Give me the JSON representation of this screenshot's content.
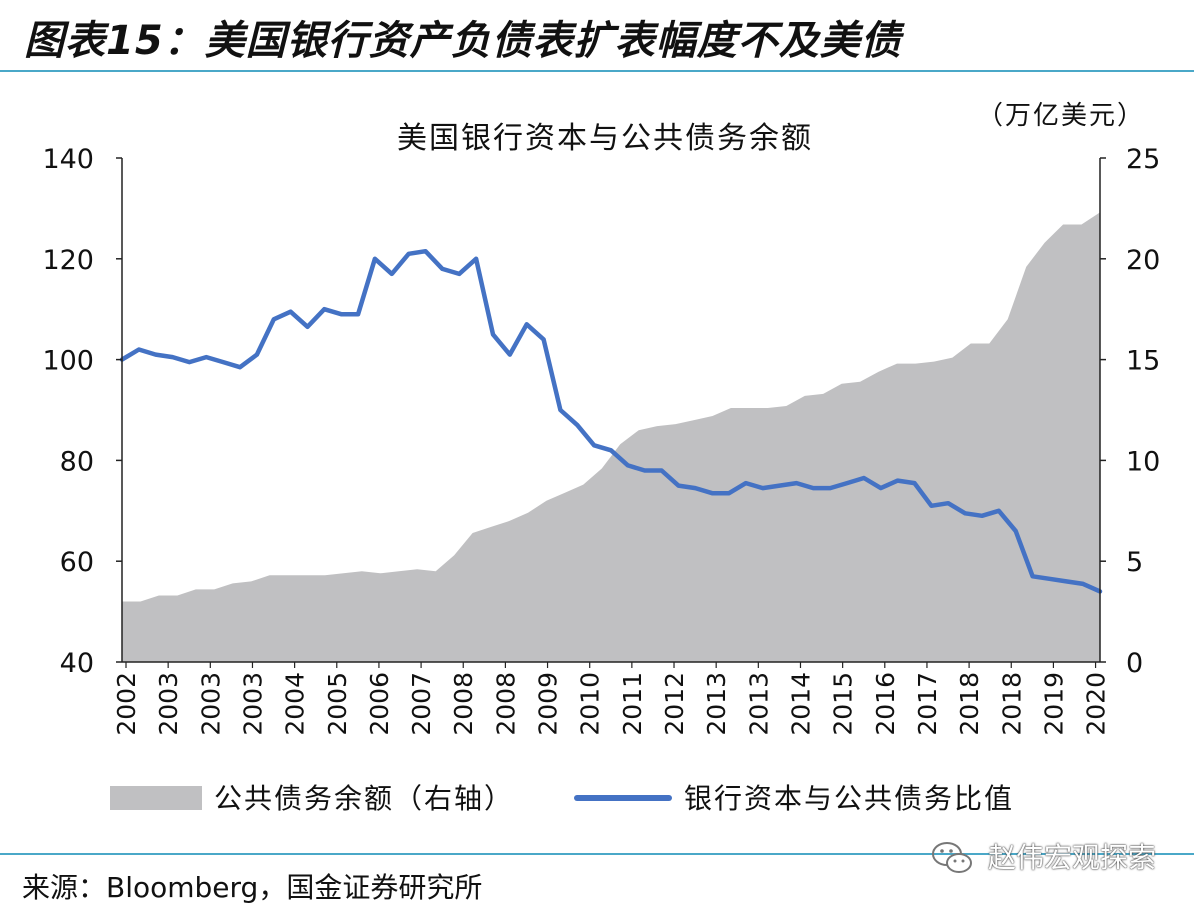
{
  "figure": {
    "title": "图表15：美国银行资产负债表扩表幅度不及美债",
    "source": "来源：Bloomberg，国金证券研究所",
    "watermark": "赵伟宏观探索"
  },
  "colors": {
    "area": "#c0c0c2",
    "line": "#4472c4",
    "rule": "#4aa8c8",
    "axis": "#222222"
  },
  "chart_data": {
    "type": "line",
    "title": "美国银行资本与公共债务余额",
    "unit_label": "（万亿美元）",
    "x_tick_labels": [
      "2002",
      "2003",
      "2003",
      "2003",
      "2004",
      "2005",
      "2006",
      "2007",
      "2008",
      "2008",
      "2009",
      "2010",
      "2011",
      "2012",
      "2013",
      "2013",
      "2014",
      "2015",
      "2016",
      "2017",
      "2018",
      "2018",
      "2019",
      "2020"
    ],
    "left_axis": {
      "ylim": [
        40,
        140
      ],
      "ticks": [
        40,
        60,
        80,
        100,
        120,
        140
      ]
    },
    "right_axis": {
      "ylim": [
        0,
        25
      ],
      "ticks": [
        0,
        5,
        10,
        15,
        20,
        25
      ]
    },
    "legend_position": "bottom",
    "grid": false,
    "series": [
      {
        "name": "公共债务余额（右轴）",
        "type": "area",
        "axis": "right",
        "values": [
          3.0,
          3.0,
          3.3,
          3.3,
          3.6,
          3.6,
          3.9,
          4.0,
          4.3,
          4.3,
          4.3,
          4.3,
          4.4,
          4.5,
          4.4,
          4.5,
          4.6,
          4.5,
          5.3,
          6.4,
          6.7,
          7.0,
          7.4,
          8.0,
          8.4,
          8.8,
          9.6,
          10.8,
          11.5,
          11.7,
          11.8,
          12.0,
          12.2,
          12.6,
          12.6,
          12.6,
          12.7,
          13.2,
          13.3,
          13.8,
          13.9,
          14.4,
          14.8,
          14.8,
          14.9,
          15.1,
          15.8,
          15.8,
          17.0,
          19.6,
          20.8,
          21.7,
          21.7,
          22.3
        ]
      },
      {
        "name": "银行资本与公共债务比值",
        "type": "line",
        "axis": "left",
        "values": [
          100.0,
          102.0,
          101.0,
          100.5,
          99.5,
          100.5,
          99.5,
          98.5,
          101.0,
          108.0,
          109.5,
          106.5,
          110.0,
          109.0,
          109.0,
          120.0,
          117.0,
          121.0,
          121.5,
          118.0,
          117.0,
          120.0,
          105.0,
          101.0,
          107.0,
          104.0,
          90.0,
          87.0,
          83.0,
          82.0,
          79.0,
          78.0,
          78.0,
          75.0,
          74.5,
          73.5,
          73.5,
          75.5,
          74.5,
          75.0,
          75.5,
          74.5,
          74.5,
          75.5,
          76.5,
          74.5,
          76.0,
          75.5,
          71.0,
          71.5,
          69.5,
          69.0,
          70.0,
          66.0,
          57.0,
          56.5,
          56.0,
          55.5,
          54.0
        ]
      }
    ]
  }
}
